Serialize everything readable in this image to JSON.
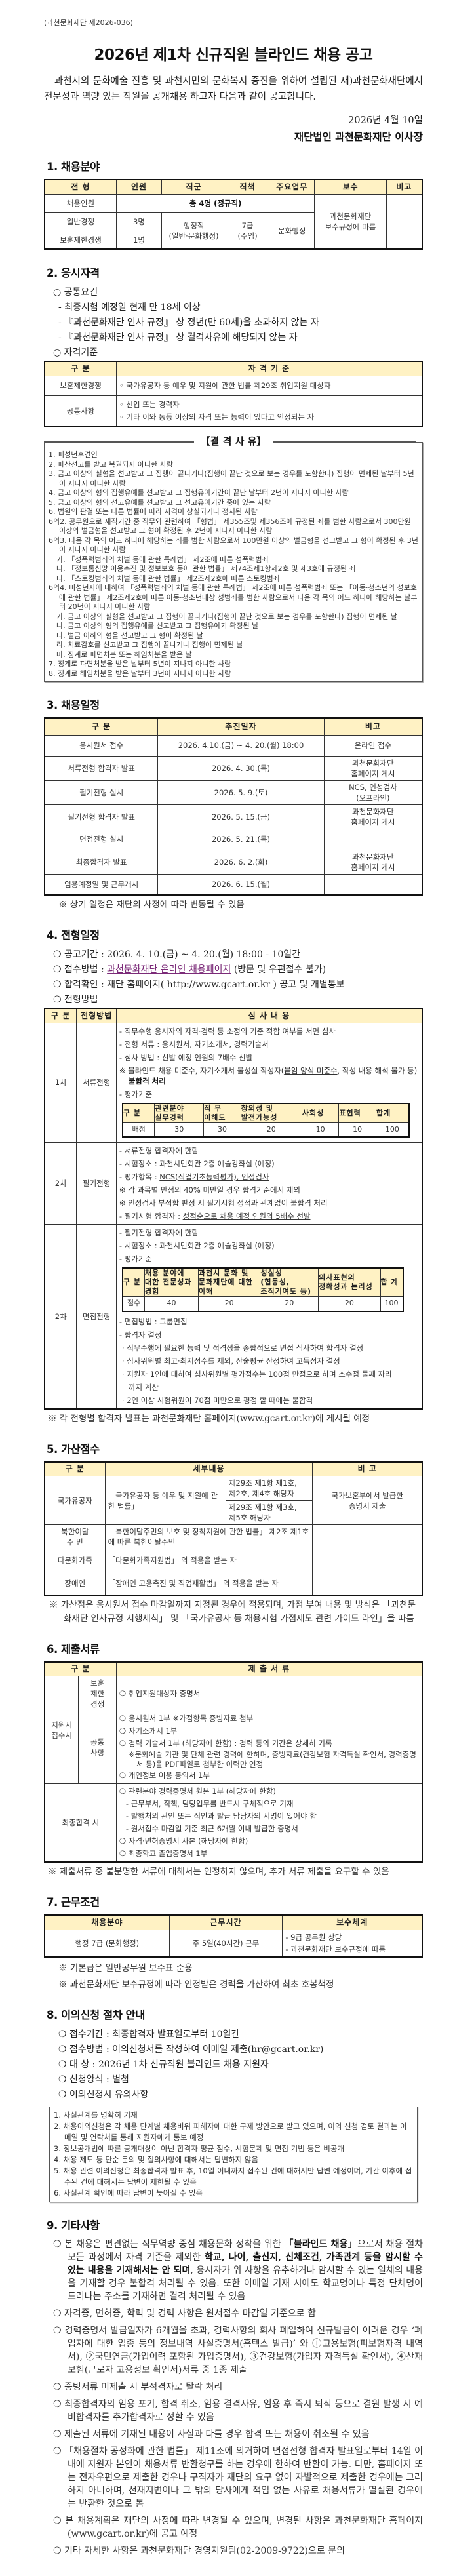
{
  "doc_no": "(과천문화재단 제2026-036)",
  "title": "2026년 제1차 신규직원 블라인드 채용 공고",
  "intro": "과천시의 문화예술 진흥 및 과천시민의 문화복지 증진을 위하여 설립된 재)과천문화재단에서 전문성과 역량 있는 직원을 공개채용 하고자 다음과 같이 공고합니다.",
  "date": "2026년 4월 10일",
  "signer": "재단법인 과천문화재단 이사장",
  "colors": {
    "header_bg": "#fff2c4",
    "link": "#7b2a78"
  },
  "s1": {
    "heading": "1. 채용분야",
    "headers": [
      "전 형",
      "인원",
      "직군",
      "직책",
      "주요업무",
      "보수",
      "비고"
    ],
    "total_label": "채용인원",
    "total_value": "총 4명 (정규직)",
    "rows": [
      {
        "type": "일반경쟁",
        "count": "3명"
      },
      {
        "type": "보훈제한경쟁",
        "count": "1명"
      }
    ],
    "job_group": "행정직\n(일반·문화행정)",
    "position": "7급\n(주임)",
    "duty": "문화행정",
    "pay": "과천문화재단\n보수규정에 따름",
    "remark": ""
  },
  "s2": {
    "heading": "2. 응시자격",
    "common_title": "공통요건",
    "common": [
      "최종시험 예정일 현재 만 18세 이상",
      "『과천문화재단 인사 규정』 상 정년(만 60세)을 초과하지 않는 자",
      "『과천문화재단 인사 규정』 상 결격사유에 해당되지 않는 자"
    ],
    "criteria_title": "자격기준",
    "criteria_headers": [
      "구 분",
      "자 격 기 준"
    ],
    "criteria_rows": [
      {
        "label": "보훈제한경쟁",
        "items": [
          "◦ 국가유공자 등 예우 및 지원에 관한 법률 제29조 취업지원 대상자"
        ]
      },
      {
        "label": "공통사항",
        "items": [
          "◦ 신입 또는 경력자",
          "◦ 기타 이와 동등 이상의 자격 또는 능력이 있다고 인정되는 자"
        ]
      }
    ],
    "disq_title": "【결 격 사 유】",
    "disq": [
      {
        "text": "1. 피성년후견인",
        "lvl": 0
      },
      {
        "text": "2. 파산선고를 받고 복권되지 아니한 사람",
        "lvl": 0
      },
      {
        "text": "3. 금고 이상의 실형을 선고받고 그 집행이 끝나거나(집행이 끝난 것으로 보는 경우를 포함한다) 집행이 면제된 날부터 5년이 지나지 아니한 사람",
        "lvl": 0
      },
      {
        "text": "4. 금고 이상의 형의 집행유예를 선고받고 그 집행유예기간이 끝난 날부터 2년이 지나지 아니한 사람",
        "lvl": 0
      },
      {
        "text": "5. 금고 이상의 형의 선고유예를 선고받고 그 선고유예기간 중에 있는 사람",
        "lvl": 0
      },
      {
        "text": "6. 법원의 판결 또는 다른 법률에 따라 자격이 상실되거나 정지된 사람",
        "lvl": 0
      },
      {
        "text": "6의2. 공무원으로 재직기간 중 직무와 관련하여 「형법」 제355조및 제356조에 규정된 죄를 범한 사람으로서 300만원 이상의 벌금형을 선고받고 그 형이 확정된 후 2년이 지나지 아니한 사람",
        "lvl": 0
      },
      {
        "text": "6의3. 다음 각 목의 어느 하나에 해당하는 죄를 범한 사람으로서 100만원 이상의 벌금형을 선고받고 그 형이 확정된 후 3년이 지나지 아니한 사람",
        "lvl": 0
      },
      {
        "text": "가. 「성폭력범죄의 처벌 등에 관한 특례법」 제2조에 따른 성폭력범죄",
        "lvl": 1
      },
      {
        "text": "나. 「정보통신망 이용촉진 및 정보보호 등에 관한 법률」 제74조제1항제2호 및 제3호에 규정된 죄",
        "lvl": 1
      },
      {
        "text": "다. 「스토킹범죄의 처벌 등에 관한 법률」 제2조제2호에 따른 스토킹범죄",
        "lvl": 1
      },
      {
        "text": "6의4. 미성년자에 대하여 「성폭력범죄의 처벌 등에 관한 특례법」 제2조에 따른 성폭력범죄 또는 「아동·청소년의 성보호에 관한 법률」 제2조제2호에 따른 아동·청소년대상 성범죄를 범한 사람으로서 다음 각 목의 어느 하나에 해당하는 날부터 20년이 지나지 아니한 사람",
        "lvl": 0
      },
      {
        "text": "가. 금고 이상의 실형을 선고받고 그 집행이 끝나거나(집행이 끝난 것으로 보는 경우를 포함한다) 집행이 면제된 날",
        "lvl": 1
      },
      {
        "text": "나. 금고 이상의 형의 집행유예를 선고받고 그 집행유예가 확정된 날",
        "lvl": 1
      },
      {
        "text": "다. 벌금 이하의 형을 선고받고 그 형이 확정된 날",
        "lvl": 1
      },
      {
        "text": "라. 치료감호를 선고받고 그 집행이 끝나거나 집행이 면제된 날",
        "lvl": 1
      },
      {
        "text": "마. 징계로 파면처분 또는 해임처분을 받은 날",
        "lvl": 1
      },
      {
        "text": "7. 징계로 파면처분을 받은 날부터 5년이 지나지 아니한 사람",
        "lvl": 0
      },
      {
        "text": "8. 징계로 해임처분을 받은 날부터 3년이 지나지 아니한 사람",
        "lvl": 0
      }
    ]
  },
  "s3": {
    "heading": "3. 채용일정",
    "headers": [
      "구 분",
      "추진일자",
      "비고"
    ],
    "rows": [
      [
        "응시원서 접수",
        "2026. 4.10.(금) ~ 4. 20.(월) 18:00",
        "온라인 접수"
      ],
      [
        "서류전형 합격자 발표",
        "2026. 4. 30.(목)",
        "과천문화재단\n홈페이지 게시"
      ],
      [
        "필기전형 실시",
        "2026. 5.  9.(토)",
        "NCS, 인성검사\n(오프라인)"
      ],
      [
        "필기전형 합격자 발표",
        "2026. 5. 15.(금)",
        "과천문화재단\n홈페이지 게시"
      ],
      [
        "면접전형 실시",
        "2026. 5. 21.(목)",
        ""
      ],
      [
        "최종합격자 발표",
        "2026. 6.  2.(화)",
        "과천문화재단\n홈페이지 게시"
      ],
      [
        "임용예정일 및 근무개시",
        "2026. 6. 15.(월)",
        ""
      ]
    ],
    "note": "※ 상기 일정은 재단의 사정에 따라 변동될 수 있음"
  },
  "s4": {
    "heading": "4. 전형일정",
    "period_label": "공고기간 : ",
    "period": "2026. 4. 10.(금) ~ 4. 20.(월) 18:00 - 10일간",
    "method_label": "접수방법 : ",
    "method_link": "과천문화재단 온라인 채용페이지",
    "method_note": " (방문 및 우편접수 불가)",
    "confirm_label": "합격확인 : ",
    "confirm": "재단 홈페이지( http://www.gcart.or.kr ) 공고 및 개별통보",
    "process_title": "전형방법",
    "headers": [
      "구 분",
      "전형방법",
      "심 사 내 용"
    ],
    "stage1": {
      "round": "1차",
      "name": "서류전형",
      "l1": "- 직무수행 응시자의 자격·경력 등 소정의 기준 적합 여부를 서면 심사",
      "l2": "- 전형 서류 : 응시원서, 자기소개서, 경력기술서",
      "l3a": "- 심사 방법 : ",
      "l3b": "선발 예정 인원의 7배수 선발",
      "l4a": "※ 블라인드 채용 미준수, 자기소개서 불성실 작성자(",
      "l4b": "붙임 양식 미준수",
      "l4c": ", 작성 내용 해석 불가 등) ",
      "l4d": "불합격 처리",
      "l5": "- 평가기준",
      "eval_headers": [
        "구 분",
        "관련분야\n실무경력",
        "직 무\n이해도",
        "창의성 및\n발전가능성",
        "사회성",
        "표현력",
        "합계"
      ],
      "eval_row": [
        "배점",
        "30",
        "30",
        "20",
        "10",
        "10",
        "100"
      ]
    },
    "stage2": {
      "round": "2차",
      "name": "필기전형",
      "l1": "- 서류전형 합격자에 한함",
      "l2": "- 시험장소 : 과천시민회관 2층 예술강좌실 (예정)",
      "l3a": "- 평가항목 : ",
      "l3b": "NCS(직업기초능력평가), 인성검사",
      "l4": "※ 각 과목별 만점의 40% 미만일 경우 합격기준에서 제외",
      "l5": "※ 인성검사 부적합 판정 시 필기시험 성적과 관계없이 불합격 처리",
      "l6a": "- 필기시험 합격자 : ",
      "l6b": "성적순으로 채용 예정 인원의 5배수 선발"
    },
    "stage3": {
      "round": "2차",
      "name": "면접전형",
      "l1": "- 필기전형 합격자에 한함",
      "l2": "- 시험장소 : 과천시민회관 2층 예술강좌실 (예정)",
      "l3": "- 평가기준",
      "eval_headers": [
        "구 분",
        "채용 분야에\n대한 전문성과\n경험",
        "과천시 문화 및\n문화재단에 대한\n이해",
        "성실성\n(협동성,\n조직기여도 등)",
        "의사표현의\n정확성과 논리성",
        "합 계"
      ],
      "eval_row": [
        "점수",
        "40",
        "20",
        "20",
        "20",
        "100"
      ],
      "l4": "- 면접방법 : 그룹면접",
      "l5": "- 합격자 결정",
      "d1": "· 직무수행에 필요한 능력 및 적격성을 종합적으로 면접 심사하여 합격자 결정",
      "d2": "· 심사위원별 최고·최저점수를 제외, 산술평균 산정하여 고득점자 결정",
      "d3": "· 지원자 1인에 대하여 심사위원별 평가점수는 100점 만점으로 하며 소수점 둘째 자리까지 계산",
      "d4": "· 2인 이상 시험위원이 70점 미만으로 평정 할 때에는 불합격"
    },
    "note": "※ 각 전형별 합격자 발표는 과천문화재단 홈페이지(www.gcart.or.kr)에 게시될 예정"
  },
  "s5": {
    "heading": "5. 가산점수",
    "headers": [
      "구 분",
      "세부내용",
      "비 고"
    ],
    "r1": {
      "label": "국가유공자",
      "law": "「국가유공자 등 예우 및 지원에 관한 법률」",
      "a": "제29조 제1항 제1호,\n제2호, 제4호 해당자",
      "b": "제29조 제1항 제3호,\n제5호 해당자",
      "note": "국가보훈부에서 발급한\n증명서 제출"
    },
    "r2": {
      "label": "북한이탈\n주    민",
      "text": "「북한이탈주민의 보호 및 정착지원에 관한 법률」 제2조 제1호에 따른 북한이탈주민"
    },
    "r3": {
      "label": "다문화가족",
      "text": "「다문화가족지원법」 의 적용을 받는 자"
    },
    "r4": {
      "label": "장애인",
      "text": "「장애인 고용촉진 및 직업재활법」 의 적용을 받는 자"
    },
    "note": "※ 가산점은 응시원서 접수 마감일까지 지정된 경우에 적용되며, 가점 부여 내용 및 방식은 「과천문화재단 인사규정 시행세칙」 및 「국가유공자 등 채용시험 가점제도 관련 가이드 라인」을 따름"
  },
  "s6": {
    "heading": "6. 제출서류",
    "headers": [
      "구 분",
      "제 출 서 류"
    ],
    "apply_label": "지원서\n접수시",
    "veteran_label": "보훈\n제한\n경쟁",
    "veteran_doc": "취업지원대상자 증명서",
    "common_label": "공통\n사항",
    "c1": "응시원서 1부 ※가점항목 증빙자료 첨부",
    "c2": "자기소개서 1부",
    "c3": "경력 기술서 1부 (해당자에 한함) : 경력 등의 기간은 상세히 기록",
    "c3n": "※문화예술 기관 및 단체 관련 경력에 한하며, 증빙자료(건강보험 자격득실 확인서, 경력증명서 등)을 PDF파일로 첨부한 이력만 인정",
    "c4": "개인정보 이용 동의서 1부",
    "final_label": "최종합격 시",
    "f1": "관련분야 경력증명서 원본 1부 (해당자에 한함)",
    "f1a": "- 근무부서, 직책, 담당업무를 반드시 구체적으로 기재",
    "f1b": "- 발행처의 관인 또는 직인과 발급 담당자의 서명이 있어야 함",
    "f1c": "- 원서접수 마감일 기준 최근 6개월 이내 발급한 증명서",
    "f2": "자격·면허증명서 사본 (해당자에 한함)",
    "f3": "최종학교 졸업증명서 1부",
    "note": "※ 제출서류 중 불분명한 서류에 대해서는 인정하지 않으며, 추가 서류 제출을 요구할 수 있음"
  },
  "s7": {
    "heading": "7. 근무조건",
    "headers": [
      "채용분야",
      "근무시간",
      "보수체계"
    ],
    "field": "행정 7급 (문화행정)",
    "hours": "주 5일(40시간) 근무",
    "pay": "- 9급 공무원 상당\n- 과천문화재단 보수규정에 따름",
    "notes": [
      "※ 기본급은 일반공무원 보수표 준용",
      "※ 과천문화재단 보수규정에 따라 인정받은 경력을 가산하여 최초 호봉책정"
    ]
  },
  "s8": {
    "heading": "8. 이의신청 절차 안내",
    "items": [
      "접수기간 : 최종합격자 발표일로부터 10일간",
      "접수방법 : 이의신청서를 작성하여 이메일 제출(hr@gcart.or.kr)",
      "대      상 : 2026년 1차 신규직원 블라인드 채용 지원자",
      "신청양식 : 별첨",
      "이의신청시 유의사항"
    ],
    "box": [
      {
        "text": "1. 사실관계를 명확히 기재",
        "lvl": 0
      },
      {
        "text": "2. 채용이의신청은 각 채용 단계별 채용비위 피해자에 대한 구제 방안으로 받고 있으며, 이의 신청 검토 결과는 이메일 및 연락처를 통해 지원자에게 통보 예정",
        "lvl": 0
      },
      {
        "text": "3. 정보공개법에 따른 공개대상이 아닌 합격자 평균 점수, 시험문제 및 면접 기법 등은 비공개",
        "lvl": 0
      },
      {
        "text": "4. 채용 제도 등 단순 문의 및 질의사항에 대해서는 답변하지 않음",
        "lvl": 0
      },
      {
        "text": "5. 채용 관련 이의신청은 최종합격자 발표 후, 10일 이내까지 접수된 건에 대해서만 답변 예정이며, 기간 이후에 접수된 건에 대해서는 답변이 제한될 수 있음",
        "lvl": 0
      },
      {
        "text": "6. 사실관계 확인에 따라 답변이 늦어질 수 있음",
        "lvl": 0
      }
    ]
  },
  "s9": {
    "heading": "9. 기타사항",
    "i1a": "본 채용은 편견없는 직무역량 중심 채용문화 정착을 위한 ",
    "i1b": "「블라인드 채용」",
    "i1c": "으로서 채용 절차 모든 과정에서 자격 기준을 제외한 ",
    "i1d": "학교, 나이, 출신지, 신체조건, 가족관계 등을 암시할 수 있는 내용을 기재해서는 안 되며",
    "i1e": ", 응시자가 위 사항을 유추하거나 암시할 수 있는 일체의 내용을 기재할 경우 불합격 처리될 수 있음. 또한 이메일 기재 시에도 학교명이나 특정 단체명이 드러나는 주소를 기재하면 결격 처리될 수 있음",
    "items": [
      "자격증, 면허증, 학력 및 경력 사항은 원서접수 마감일 기준으로 함",
      "경력증명서 발급일자가 6개월을 초과, 경력사항의 회사 폐업하여 신규발급이 어려운 경우 ‘폐업자에 대한 업종 등의 정보내역 사실증명서(홈텍스 발급)’ 와 ①고용보험(피보험자격 내역서), ②국민연금(가입이력 포함된 가입증명서), ③건강보험(가입자 자격득실 확인서), ④산재보험(근로자 고용정보 확인서)서류 중 1종 제출",
      "증빙서류 미제출 시 부적격자로 탈락 처리",
      "최종합격자의 임용 포기, 합격 취소, 임용 결격사유, 임용 후 즉시 퇴직 등으로 결원 발생 시 예비합격자를 추가합격자로 정할 수 있음",
      "제출된 서류에 기재된 내용이 사실과 다를 경우 합격 또는 채용이 취소될 수 있음",
      "「채용절차 공정화에 관한 법률」 제11조에 의거하여 면접전형 합격자 발표일로부터 14일 이내에 지원자 본인이 채용서류 반환청구를 하는 경우에 한하여 반환이 가능. 다만, 홈페이지 또는 전자우편으로 제출한 경우나 구직자가 재단의 요구 없이 자발적으로 제출한 경우에는 그러하지 아니하며, 천재지변이나 그 밖의 당사에게 책임 없는 사유로 채용서류가 멸실된 경우에는 반환한 것으로 봄",
      "본 채용계획은 재단의 사정에 따라 변경될 수 있으며, 변경된 사항은 과천문화재단 홈페이지(www.gcart.or.kr)에 공고 예정",
      "기타 자세한 사항은 과천문화재단 경영지원팀(02-2009-9722)으로 문의"
    ]
  },
  "bullet": "❍"
}
